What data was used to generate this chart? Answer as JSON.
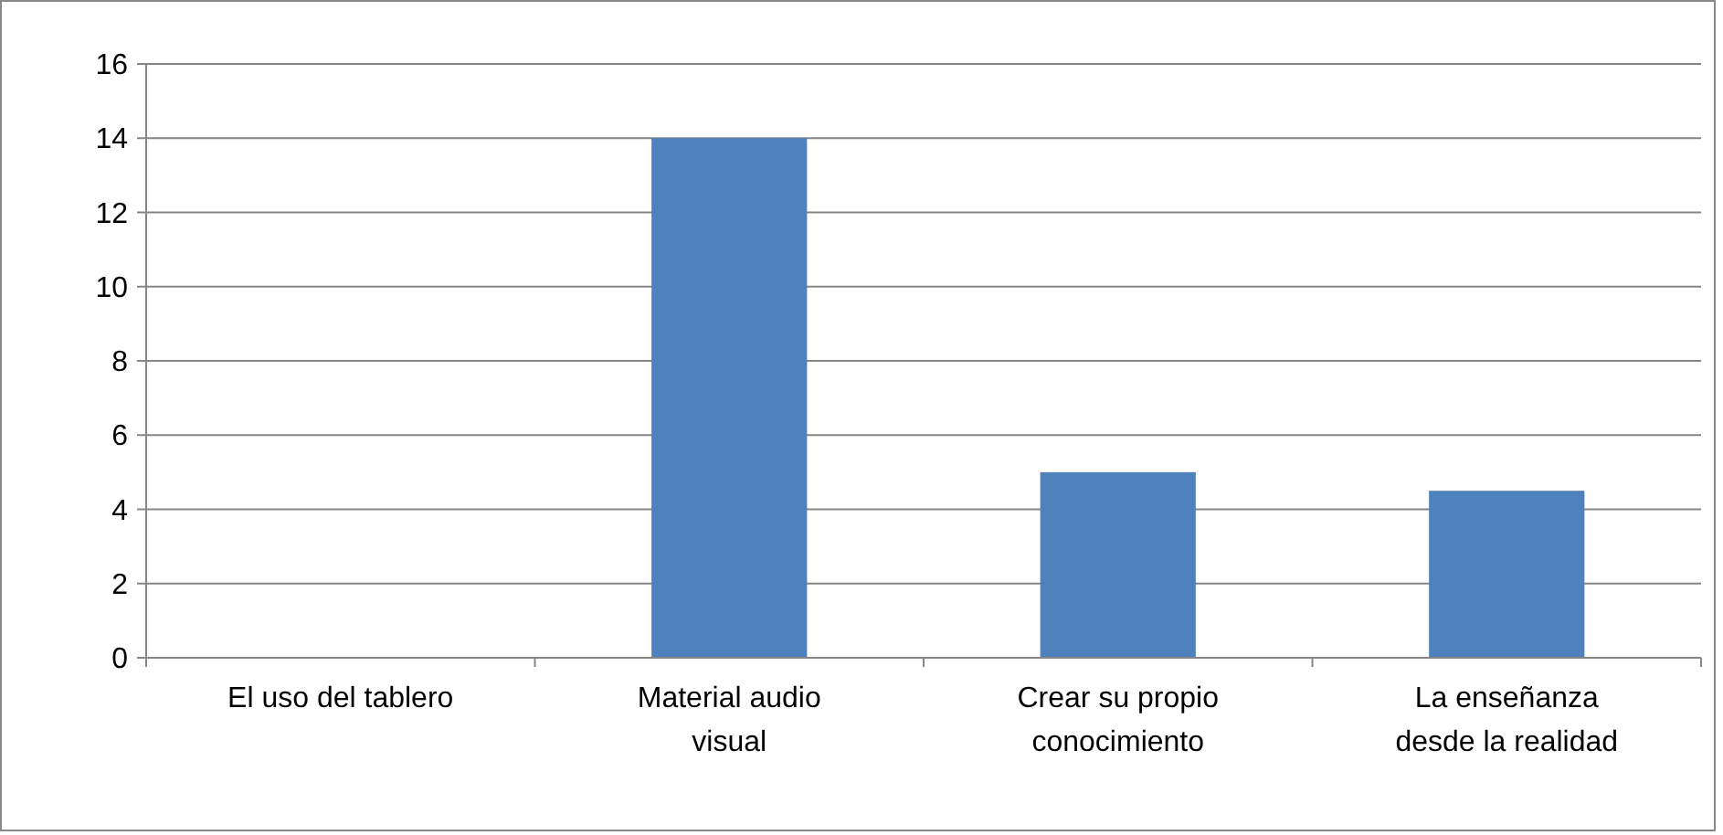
{
  "chart_data": {
    "type": "bar",
    "categories": [
      "El uso del tablero",
      "Material audio visual",
      "Crear su propio conocimiento",
      "La enseñanza desde la realidad"
    ],
    "values": [
      0,
      14,
      5,
      4.5
    ],
    "color": "#4f81bd",
    "ylim": [
      0,
      16
    ],
    "yticks": [
      0,
      2,
      4,
      6,
      8,
      10,
      12,
      14,
      16
    ],
    "grid": "y"
  }
}
